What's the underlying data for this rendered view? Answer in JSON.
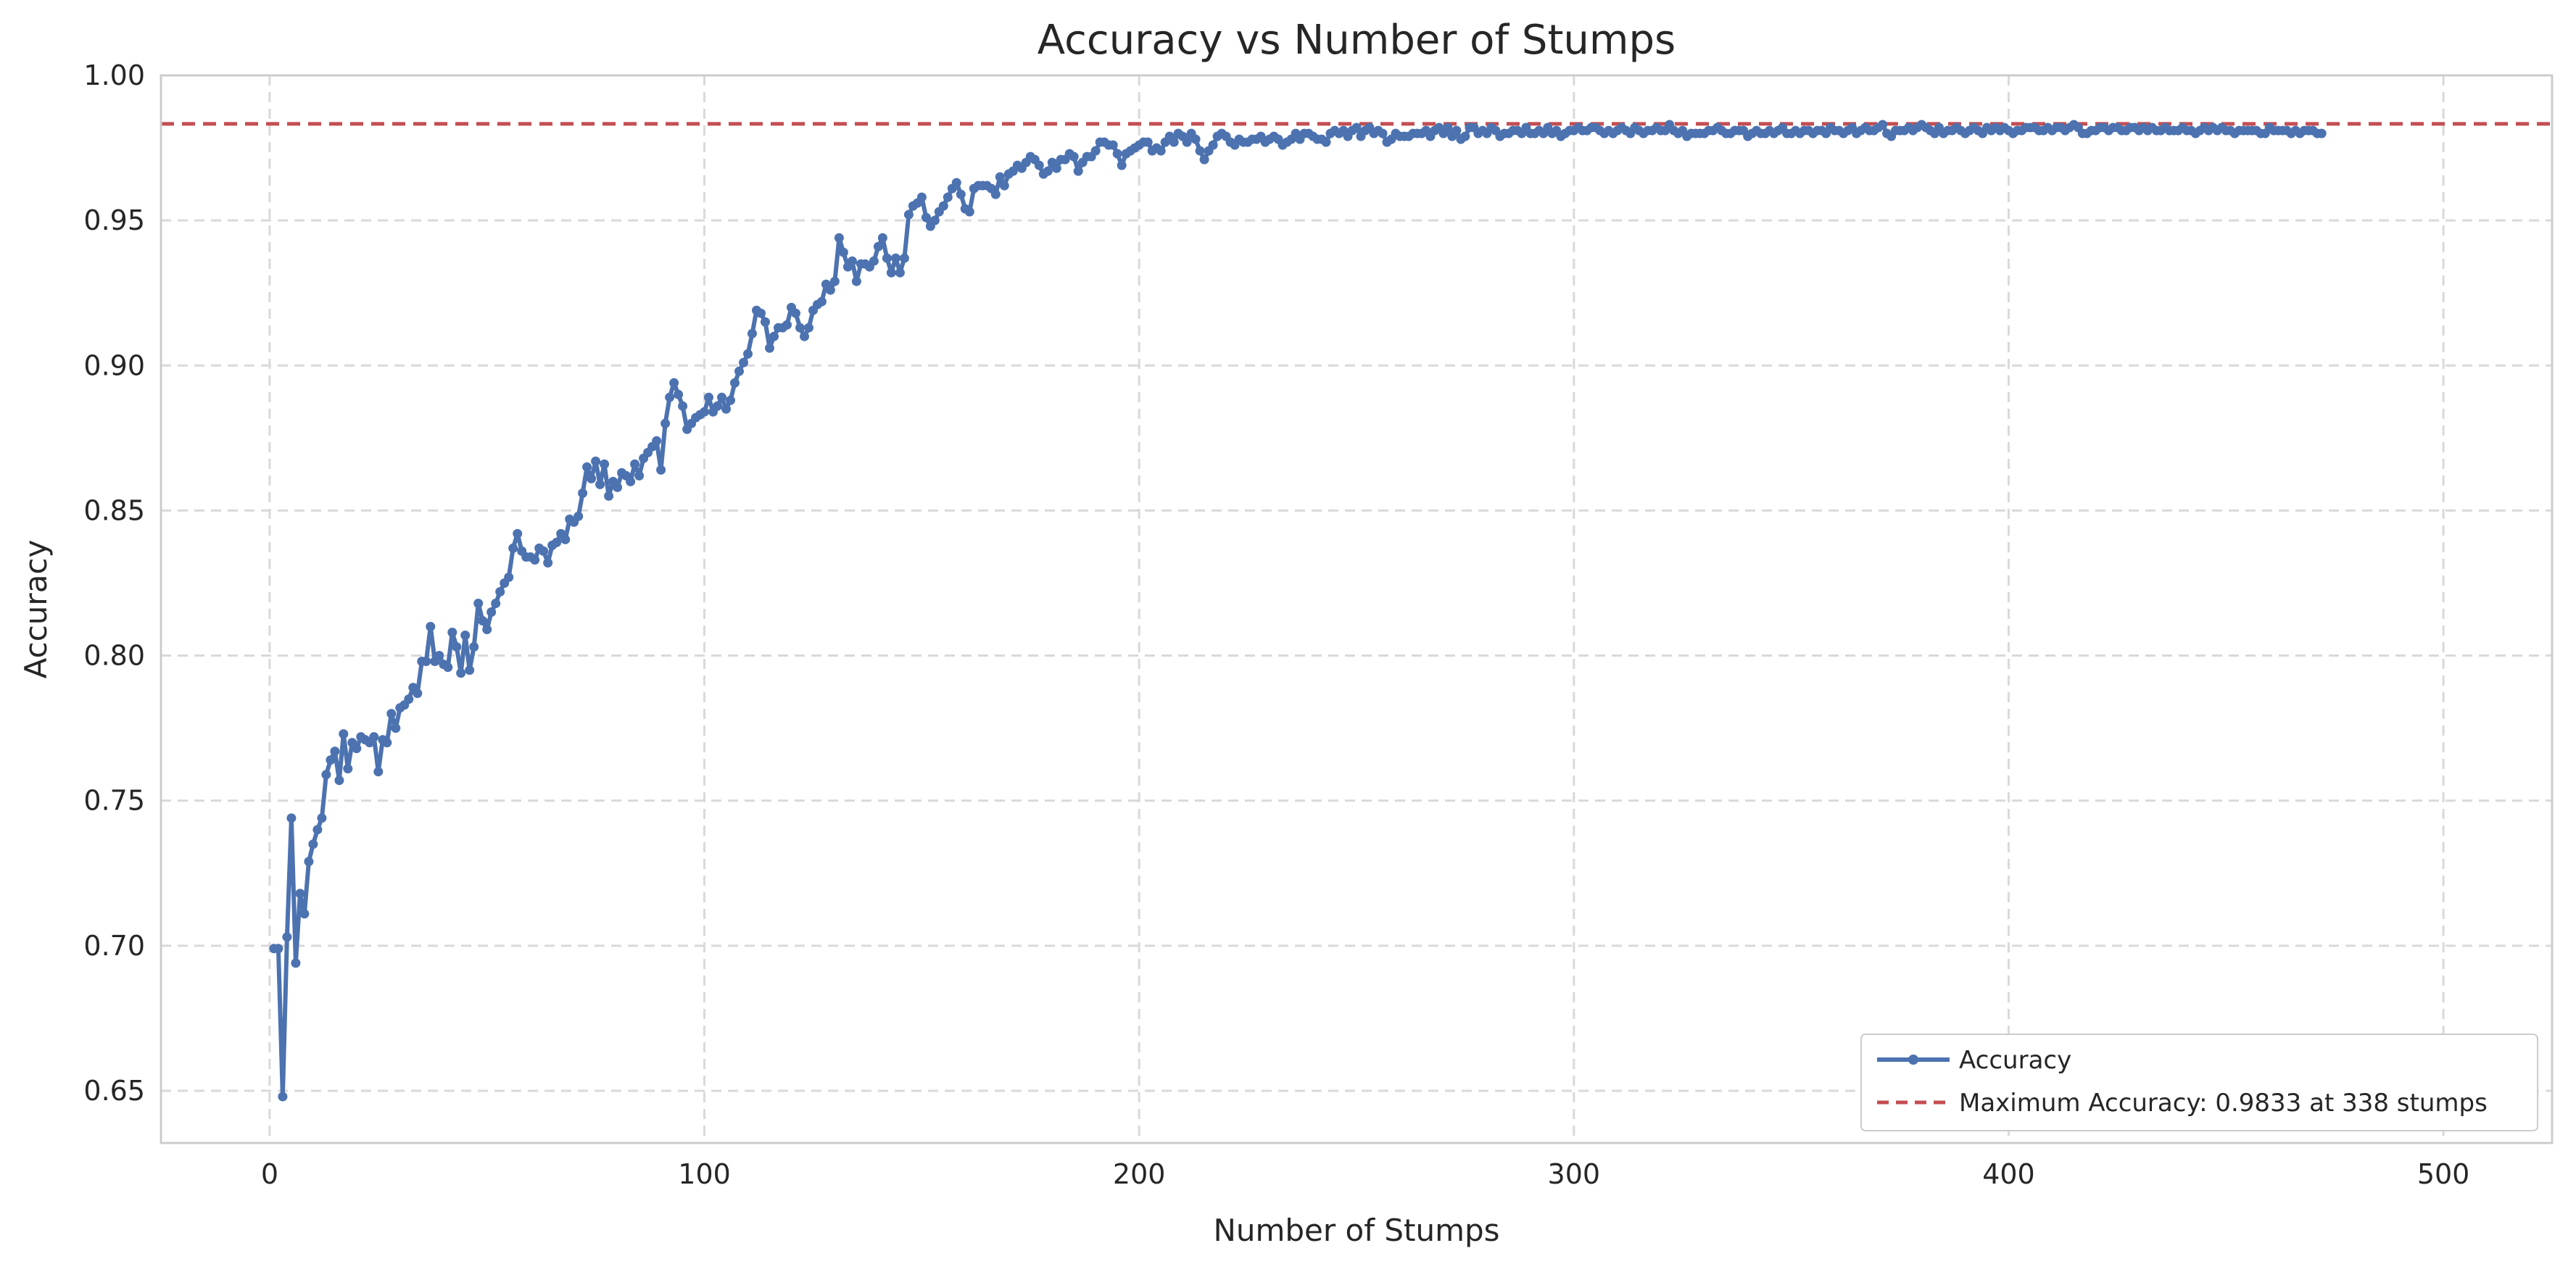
{
  "chart_data": {
    "type": "line",
    "title": "Accuracy vs Number of Stumps",
    "xlabel": "Number of Stumps",
    "ylabel": "Accuracy",
    "xlim": [
      -25,
      525
    ],
    "ylim": [
      0.632,
      1.0
    ],
    "xticks": [
      0,
      100,
      200,
      300,
      400,
      500
    ],
    "xtick_labels": [
      "0",
      "100",
      "200",
      "300",
      "400",
      "500"
    ],
    "yticks": [
      0.65,
      0.7,
      0.75,
      0.8,
      0.85,
      0.9,
      0.95,
      1.0
    ],
    "ytick_labels": [
      "0.65",
      "0.70",
      "0.75",
      "0.80",
      "0.85",
      "0.90",
      "0.95",
      "1.00"
    ],
    "grid": true,
    "legend_position": "lower-right",
    "series": [
      {
        "name": "Accuracy",
        "color": "#4c72b0",
        "marker": "circle",
        "x_start": 1,
        "x_step": 1,
        "values": [
          0.699,
          0.699,
          0.648,
          0.703,
          0.744,
          0.694,
          0.718,
          0.711,
          0.729,
          0.735,
          0.74,
          0.744,
          0.759,
          0.764,
          0.767,
          0.757,
          0.773,
          0.761,
          0.77,
          0.768,
          0.772,
          0.771,
          0.77,
          0.772,
          0.76,
          0.771,
          0.77,
          0.78,
          0.775,
          0.782,
          0.783,
          0.785,
          0.789,
          0.787,
          0.798,
          0.798,
          0.81,
          0.798,
          0.8,
          0.797,
          0.796,
          0.808,
          0.803,
          0.794,
          0.807,
          0.795,
          0.803,
          0.818,
          0.812,
          0.809,
          0.815,
          0.818,
          0.822,
          0.825,
          0.827,
          0.837,
          0.842,
          0.836,
          0.834,
          0.834,
          0.833,
          0.837,
          0.836,
          0.832,
          0.838,
          0.839,
          0.842,
          0.84,
          0.847,
          0.846,
          0.848,
          0.856,
          0.865,
          0.861,
          0.867,
          0.859,
          0.866,
          0.855,
          0.86,
          0.858,
          0.863,
          0.862,
          0.86,
          0.866,
          0.862,
          0.868,
          0.87,
          0.872,
          0.874,
          0.864,
          0.88,
          0.889,
          0.894,
          0.89,
          0.886,
          0.878,
          0.88,
          0.882,
          0.883,
          0.884,
          0.889,
          0.884,
          0.886,
          0.889,
          0.885,
          0.888,
          0.894,
          0.898,
          0.901,
          0.904,
          0.911,
          0.919,
          0.918,
          0.915,
          0.906,
          0.91,
          0.913,
          0.913,
          0.914,
          0.92,
          0.918,
          0.913,
          0.91,
          0.913,
          0.919,
          0.921,
          0.922,
          0.928,
          0.926,
          0.929,
          0.944,
          0.939,
          0.934,
          0.936,
          0.929,
          0.935,
          0.935,
          0.934,
          0.936,
          0.941,
          0.944,
          0.937,
          0.932,
          0.937,
          0.932,
          0.937,
          0.952,
          0.955,
          0.956,
          0.958,
          0.951,
          0.948,
          0.95,
          0.953,
          0.955,
          0.958,
          0.961,
          0.963,
          0.959,
          0.954,
          0.953,
          0.961,
          0.962,
          0.962,
          0.962,
          0.961,
          0.959,
          0.965,
          0.962,
          0.966,
          0.967,
          0.969,
          0.968,
          0.97,
          0.972,
          0.971,
          0.969,
          0.966,
          0.967,
          0.97,
          0.968,
          0.971,
          0.971,
          0.973,
          0.972,
          0.967,
          0.97,
          0.972,
          0.972,
          0.974,
          0.977,
          0.977,
          0.976,
          0.976,
          0.973,
          0.969,
          0.973,
          0.974,
          0.975,
          0.976,
          0.977,
          0.977,
          0.974,
          0.975,
          0.974,
          0.977,
          0.979,
          0.977,
          0.98,
          0.979,
          0.977,
          0.98,
          0.978,
          0.974,
          0.971,
          0.974,
          0.976,
          0.979,
          0.98,
          0.979,
          0.977,
          0.976,
          0.978,
          0.977,
          0.977,
          0.978,
          0.978,
          0.979,
          0.977,
          0.978,
          0.979,
          0.978,
          0.976,
          0.977,
          0.978,
          0.98,
          0.978,
          0.98,
          0.98,
          0.979,
          0.978,
          0.978,
          0.977,
          0.98,
          0.981,
          0.98,
          0.981,
          0.979,
          0.981,
          0.982,
          0.979,
          0.981,
          0.982,
          0.98,
          0.981,
          0.98,
          0.977,
          0.978,
          0.98,
          0.979,
          0.979,
          0.979,
          0.98,
          0.98,
          0.98,
          0.981,
          0.979,
          0.981,
          0.982,
          0.98,
          0.982,
          0.979,
          0.981,
          0.978,
          0.979,
          0.982,
          0.982,
          0.98,
          0.981,
          0.98,
          0.982,
          0.981,
          0.979,
          0.98,
          0.98,
          0.981,
          0.981,
          0.98,
          0.982,
          0.98,
          0.98,
          0.981,
          0.98,
          0.982,
          0.98,
          0.981,
          0.979,
          0.98,
          0.981,
          0.981,
          0.982,
          0.981,
          0.981,
          0.982,
          0.982,
          0.981,
          0.98,
          0.981,
          0.98,
          0.981,
          0.982,
          0.981,
          0.98,
          0.982,
          0.981,
          0.98,
          0.981,
          0.981,
          0.982,
          0.981,
          0.981,
          0.983,
          0.981,
          0.98,
          0.981,
          0.979,
          0.98,
          0.98,
          0.98,
          0.98,
          0.981,
          0.981,
          0.982,
          0.981,
          0.98,
          0.98,
          0.981,
          0.981,
          0.981,
          0.979,
          0.98,
          0.981,
          0.98,
          0.98,
          0.981,
          0.98,
          0.981,
          0.982,
          0.98,
          0.98,
          0.981,
          0.98,
          0.981,
          0.981,
          0.98,
          0.981,
          0.981,
          0.98,
          0.982,
          0.981,
          0.981,
          0.98,
          0.981,
          0.982,
          0.98,
          0.981,
          0.982,
          0.981,
          0.981,
          0.982,
          0.983,
          0.98,
          0.979,
          0.981,
          0.981,
          0.981,
          0.982,
          0.981,
          0.982,
          0.983,
          0.982,
          0.981,
          0.98,
          0.982,
          0.98,
          0.981,
          0.981,
          0.982,
          0.981,
          0.98,
          0.981,
          0.982,
          0.981,
          0.98,
          0.982,
          0.981,
          0.982,
          0.981,
          0.982,
          0.981,
          0.98,
          0.981,
          0.981,
          0.982,
          0.982,
          0.982,
          0.981,
          0.981,
          0.982,
          0.981,
          0.982,
          0.982,
          0.981,
          0.982,
          0.983,
          0.982,
          0.98,
          0.98,
          0.981,
          0.981,
          0.982,
          0.982,
          0.981,
          0.982,
          0.982,
          0.981,
          0.981,
          0.982,
          0.982,
          0.981,
          0.982,
          0.981,
          0.982,
          0.981,
          0.981,
          0.982,
          0.981,
          0.981,
          0.981,
          0.982,
          0.981,
          0.981,
          0.98,
          0.981,
          0.982,
          0.981,
          0.982,
          0.981,
          0.982,
          0.981,
          0.981,
          0.98,
          0.981,
          0.981,
          0.981,
          0.981,
          0.981,
          0.98,
          0.98,
          0.982,
          0.981,
          0.981,
          0.981,
          0.981,
          0.98,
          0.981,
          0.98,
          0.981,
          0.981,
          0.981,
          0.98,
          0.98
        ]
      }
    ],
    "reference_line": {
      "name": "Maximum Accuracy: 0.9833 at 338 stumps",
      "y": 0.9833,
      "color": "#c44e52",
      "style": "dashed"
    }
  }
}
